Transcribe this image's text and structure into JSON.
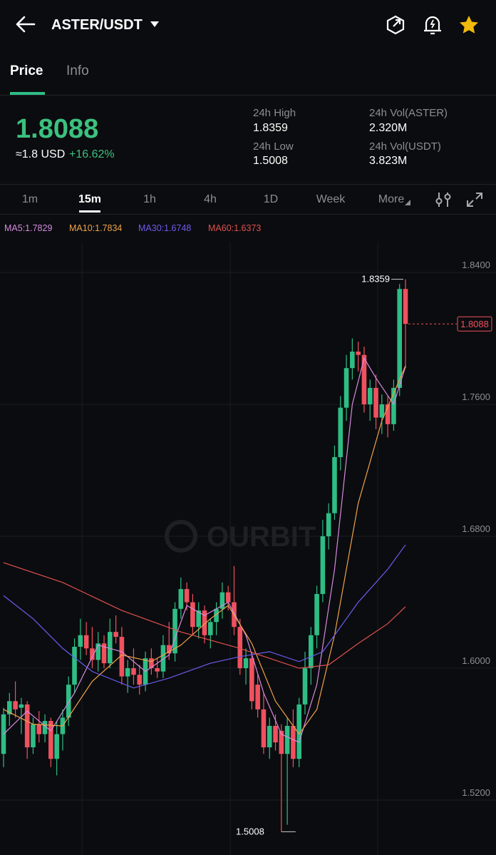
{
  "header": {
    "pair": "ASTER/USDT"
  },
  "tabs": [
    "Price",
    "Info"
  ],
  "ticker": {
    "price": "1.8088",
    "usd": "≈1.8 USD",
    "change": "+16.62%",
    "stats": [
      {
        "label": "24h High",
        "value": "1.8359"
      },
      {
        "label": "24h Vol(ASTER)",
        "value": "2.320M"
      },
      {
        "label": "24h Low",
        "value": "1.5008"
      },
      {
        "label": "24h Vol(USDT)",
        "value": "3.823M"
      }
    ]
  },
  "intervals": [
    "1m",
    "15m",
    "1h",
    "4h",
    "1D",
    "Week",
    "More"
  ],
  "watermark": "OURBIT",
  "chart_data": {
    "type": "candlestick",
    "up_color": "#2ebd85",
    "down_color": "#f0515f",
    "open": [
      1.548,
      1.572,
      1.58,
      1.576,
      1.578,
      1.552,
      1.566,
      1.56,
      1.568,
      1.545,
      1.56,
      1.57,
      1.59,
      1.613,
      1.62,
      1.612,
      1.605,
      1.615,
      1.603,
      1.622,
      1.619,
      1.595,
      1.6,
      1.596,
      1.59,
      1.606,
      1.6,
      1.598,
      1.614,
      1.609,
      1.636,
      1.648,
      1.64,
      1.625,
      1.635,
      1.62,
      1.628,
      1.636,
      1.646,
      1.64,
      1.625,
      1.6,
      1.606,
      1.59,
      1.575,
      1.552,
      1.565,
      1.562,
      1.548,
      1.565,
      1.545,
      1.578,
      1.6,
      1.62,
      1.645,
      1.68,
      1.694,
      1.728,
      1.758,
      1.782,
      1.792,
      1.79,
      1.76,
      1.77,
      1.752,
      1.76,
      1.748,
      1.77,
      1.83
    ],
    "high": [
      1.576,
      1.585,
      1.592,
      1.582,
      1.58,
      1.57,
      1.574,
      1.572,
      1.57,
      1.568,
      1.575,
      1.595,
      1.618,
      1.63,
      1.628,
      1.625,
      1.622,
      1.62,
      1.63,
      1.632,
      1.625,
      1.605,
      1.612,
      1.602,
      1.61,
      1.612,
      1.606,
      1.62,
      1.628,
      1.64,
      1.655,
      1.652,
      1.645,
      1.64,
      1.638,
      1.63,
      1.64,
      1.652,
      1.65,
      1.662,
      1.63,
      1.612,
      1.61,
      1.596,
      1.585,
      1.57,
      1.572,
      1.566,
      1.57,
      1.575,
      1.582,
      1.61,
      1.625,
      1.65,
      1.69,
      1.7,
      1.735,
      1.765,
      1.79,
      1.8,
      1.798,
      1.795,
      1.775,
      1.778,
      1.766,
      1.765,
      1.775,
      1.833,
      1.8359
    ],
    "low": [
      1.54,
      1.565,
      1.57,
      1.56,
      1.545,
      1.548,
      1.555,
      1.555,
      1.54,
      1.535,
      1.55,
      1.565,
      1.585,
      1.605,
      1.608,
      1.6,
      1.598,
      1.6,
      1.6,
      1.615,
      1.59,
      1.585,
      1.59,
      1.584,
      1.586,
      1.596,
      1.594,
      1.594,
      1.605,
      1.604,
      1.63,
      1.635,
      1.62,
      1.618,
      1.615,
      1.612,
      1.62,
      1.63,
      1.635,
      1.62,
      1.596,
      1.59,
      1.575,
      1.57,
      1.548,
      1.545,
      1.55,
      1.5008,
      1.505,
      1.54,
      1.54,
      1.572,
      1.59,
      1.612,
      1.64,
      1.672,
      1.69,
      1.72,
      1.75,
      1.775,
      1.78,
      1.755,
      1.75,
      1.745,
      1.742,
      1.74,
      1.744,
      1.765,
      1.782
    ],
    "close": [
      1.572,
      1.58,
      1.575,
      1.578,
      1.552,
      1.566,
      1.56,
      1.568,
      1.545,
      1.56,
      1.57,
      1.59,
      1.613,
      1.62,
      1.612,
      1.605,
      1.615,
      1.603,
      1.622,
      1.619,
      1.595,
      1.6,
      1.596,
      1.59,
      1.606,
      1.6,
      1.598,
      1.614,
      1.609,
      1.636,
      1.648,
      1.64,
      1.625,
      1.635,
      1.62,
      1.628,
      1.636,
      1.646,
      1.64,
      1.625,
      1.6,
      1.606,
      1.58,
      1.575,
      1.552,
      1.565,
      1.555,
      1.548,
      1.565,
      1.545,
      1.578,
      1.6,
      1.62,
      1.645,
      1.68,
      1.694,
      1.728,
      1.758,
      1.782,
      1.792,
      1.79,
      1.76,
      1.77,
      1.752,
      1.76,
      1.748,
      1.77,
      1.83,
      1.8088
    ],
    "series": [
      {
        "name": "MA5:1.7829",
        "color": "#d58be0",
        "x": [
          0,
          4,
          8,
          12,
          16,
          20,
          24,
          28,
          31,
          34,
          38,
          41,
          44,
          47,
          50,
          53,
          56,
          59,
          61,
          63,
          66,
          68
        ],
        "values": [
          1.56,
          1.574,
          1.562,
          1.585,
          1.614,
          1.61,
          1.598,
          1.608,
          1.638,
          1.632,
          1.64,
          1.62,
          1.585,
          1.56,
          1.555,
          1.59,
          1.66,
          1.76,
          1.788,
          1.776,
          1.76,
          1.7829
        ]
      },
      {
        "name": "MA10:1.7834",
        "color": "#f0a24a",
        "x": [
          0,
          5,
          10,
          15,
          20,
          25,
          30,
          35,
          38,
          42,
          46,
          50,
          53,
          56,
          60,
          64,
          68
        ],
        "values": [
          1.575,
          1.566,
          1.565,
          1.592,
          1.608,
          1.604,
          1.614,
          1.63,
          1.638,
          1.615,
          1.58,
          1.56,
          1.575,
          1.62,
          1.7,
          1.75,
          1.7834
        ]
      },
      {
        "name": "MA30:1.6748",
        "color": "#6b5cf0",
        "x": [
          0,
          5,
          10,
          15,
          22,
          28,
          35,
          40,
          45,
          50,
          54,
          60,
          65,
          68
        ],
        "values": [
          1.644,
          1.63,
          1.612,
          1.598,
          1.588,
          1.594,
          1.603,
          1.607,
          1.61,
          1.604,
          1.61,
          1.64,
          1.66,
          1.6748
        ]
      },
      {
        "name": "MA60:1.6373",
        "color": "#e0504f",
        "x": [
          0,
          10,
          20,
          30,
          40,
          45,
          50,
          55,
          60,
          65,
          68
        ],
        "values": [
          1.664,
          1.652,
          1.635,
          1.622,
          1.612,
          1.606,
          1.6,
          1.602,
          1.615,
          1.627,
          1.6373
        ]
      }
    ],
    "ylim": [
      1.4867,
      1.8755
    ],
    "yticks": [
      {
        "value": 1.84,
        "label": "1.8400"
      },
      {
        "value": 1.76,
        "label": "1.7600"
      },
      {
        "value": 1.68,
        "label": "1.6800"
      },
      {
        "value": 1.6,
        "label": "1.6000"
      },
      {
        "value": 1.52,
        "label": "1.5200"
      }
    ],
    "grid": true,
    "high_label": 1.8359,
    "low_label": 1.5008,
    "last_price": 1.8088
  }
}
